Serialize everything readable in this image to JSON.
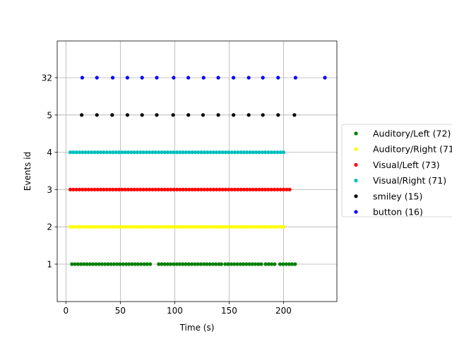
{
  "chart_data": {
    "type": "scatter",
    "title": "",
    "xlabel": "Time (s)",
    "ylabel": "Events id",
    "xlim": [
      -8,
      249
    ],
    "x_ticks": [
      0,
      50,
      100,
      150,
      200
    ],
    "y_categories": [
      "1",
      "2",
      "3",
      "4",
      "5",
      "32"
    ],
    "grid": true,
    "legend_position": "right-outside",
    "series": [
      {
        "name": "Auditory/Left (72)",
        "color": "#008000",
        "row": 0,
        "times": [
          5.5,
          8.2,
          11.0,
          13.8,
          16.5,
          19.3,
          22.1,
          24.8,
          27.6,
          30.4,
          33.1,
          35.9,
          38.7,
          41.4,
          44.2,
          47.0,
          49.7,
          52.5,
          55.3,
          58.0,
          60.8,
          63.6,
          66.3,
          69.1,
          71.9,
          74.6,
          77.4,
          85.3,
          88.0,
          90.8,
          93.6,
          96.3,
          99.1,
          101.9,
          104.6,
          107.4,
          110.2,
          112.9,
          115.7,
          118.5,
          121.2,
          124.0,
          126.8,
          129.5,
          132.3,
          135.1,
          137.8,
          140.6,
          142.9,
          146.4,
          149.2,
          152.0,
          154.7,
          157.5,
          160.3,
          163.0,
          165.8,
          168.6,
          171.3,
          174.1,
          176.9,
          179.6,
          183.5,
          186.3,
          189.0,
          191.8,
          196.8,
          199.5,
          202.3,
          205.1,
          207.8,
          210.6
        ]
      },
      {
        "name": "Auditory/Right (71)",
        "color": "#ffff00",
        "row": 1,
        "times": [
          4.0,
          6.8,
          9.6,
          12.4,
          15.2,
          18.0,
          20.8,
          23.6,
          26.4,
          29.2,
          32.0,
          34.8,
          37.6,
          40.4,
          43.2,
          46.0,
          48.8,
          51.6,
          54.4,
          57.2,
          60.0,
          62.8,
          65.6,
          68.4,
          71.2,
          74.0,
          76.8,
          79.6,
          82.4,
          85.2,
          88.0,
          90.8,
          93.6,
          96.4,
          99.2,
          102.0,
          104.8,
          107.6,
          110.4,
          113.2,
          116.0,
          118.8,
          121.6,
          124.4,
          127.2,
          130.0,
          132.8,
          135.6,
          138.4,
          141.2,
          144.0,
          146.8,
          149.6,
          152.4,
          155.2,
          158.0,
          160.8,
          163.6,
          166.4,
          169.2,
          172.0,
          174.8,
          177.6,
          180.4,
          183.2,
          186.0,
          188.8,
          191.6,
          194.4,
          197.2,
          200.0
        ]
      },
      {
        "name": "Visual/Left (73)",
        "color": "#ff0000",
        "row": 2,
        "times": [
          4.0,
          6.8,
          9.6,
          12.4,
          15.2,
          18.0,
          20.8,
          23.6,
          26.4,
          29.2,
          32.0,
          34.8,
          37.6,
          40.4,
          43.2,
          46.0,
          48.8,
          51.6,
          54.4,
          57.2,
          60.0,
          62.8,
          65.6,
          68.4,
          71.2,
          74.0,
          76.8,
          79.6,
          82.4,
          85.2,
          88.0,
          90.8,
          93.6,
          96.4,
          99.2,
          102.0,
          104.8,
          107.6,
          110.4,
          113.2,
          116.0,
          118.8,
          121.6,
          124.4,
          127.2,
          130.0,
          132.8,
          135.6,
          138.4,
          141.2,
          144.0,
          146.8,
          149.6,
          152.4,
          155.2,
          158.0,
          160.8,
          163.6,
          166.4,
          169.2,
          172.0,
          174.8,
          177.6,
          180.4,
          183.2,
          186.0,
          188.8,
          191.6,
          194.4,
          197.2,
          200.0,
          202.8,
          205.6
        ]
      },
      {
        "name": "Visual/Right (71)",
        "color": "#00bfbf",
        "row": 3,
        "times": [
          4.0,
          6.8,
          9.6,
          12.4,
          15.2,
          18.0,
          20.8,
          23.6,
          26.4,
          29.2,
          32.0,
          34.8,
          37.6,
          40.4,
          43.2,
          46.0,
          48.8,
          51.6,
          54.4,
          57.2,
          60.0,
          62.8,
          65.6,
          68.4,
          71.2,
          74.0,
          76.8,
          79.6,
          82.4,
          85.2,
          88.0,
          90.8,
          93.6,
          96.4,
          99.2,
          102.0,
          104.8,
          107.6,
          110.4,
          113.2,
          116.0,
          118.8,
          121.6,
          124.4,
          127.2,
          130.0,
          132.8,
          135.6,
          138.4,
          141.2,
          144.0,
          146.8,
          149.6,
          152.4,
          155.2,
          158.0,
          160.8,
          163.6,
          166.4,
          169.2,
          172.0,
          174.8,
          177.6,
          180.4,
          183.2,
          186.0,
          188.8,
          191.6,
          194.4,
          197.2,
          200.0
        ]
      },
      {
        "name": "smiley (15)",
        "color": "#000000",
        "row": 4,
        "times": [
          14.5,
          28.5,
          42.5,
          56.5,
          70.0,
          83.5,
          98.5,
          112.5,
          126.0,
          140.0,
          154.0,
          168.0,
          181.0,
          195.0,
          210.0
        ]
      },
      {
        "name": "button (16)",
        "color": "#0000ff",
        "row": 5,
        "times": [
          15.0,
          28.5,
          43.0,
          56.5,
          70.0,
          83.5,
          99.0,
          112.5,
          126.5,
          140.0,
          154.0,
          168.0,
          181.0,
          195.0,
          211.0,
          238.0
        ]
      }
    ]
  }
}
